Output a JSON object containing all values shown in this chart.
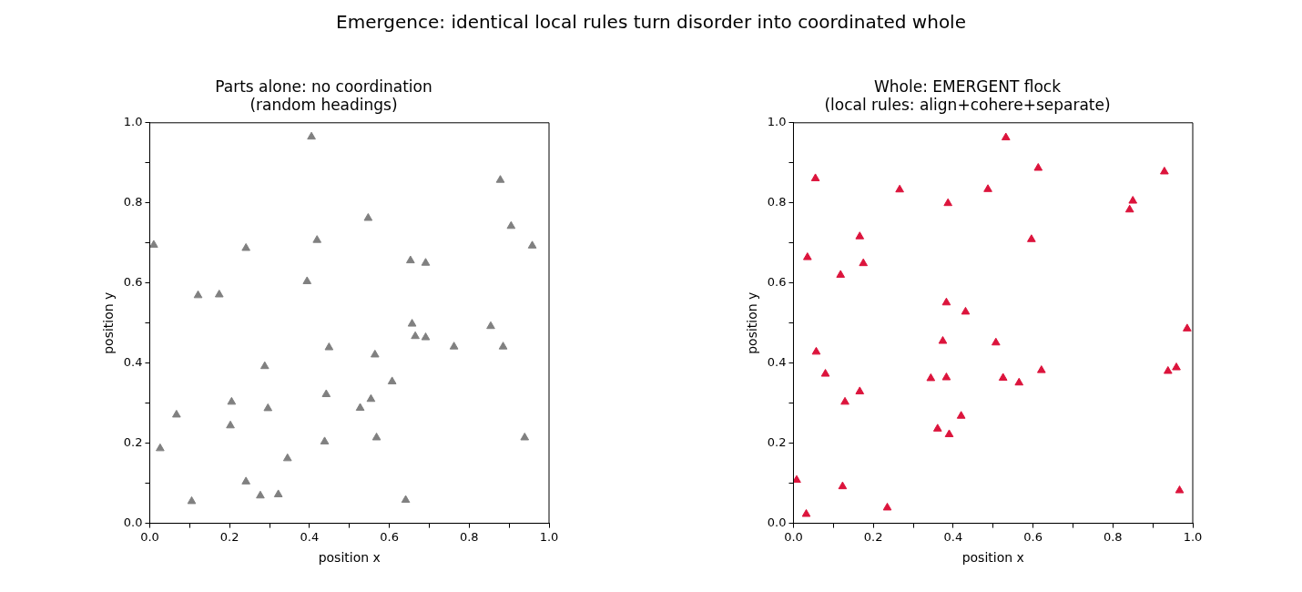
{
  "chart_data": [
    {
      "type": "scatter",
      "title": "Parts alone: no coordination\n(random headings)",
      "annotations": [
        "Emergence: identical local rules turn disorder into coordinated whole"
      ],
      "xlabel": "position x",
      "ylabel": "position y",
      "xlim": [
        0,
        1
      ],
      "ylim": [
        0,
        1
      ],
      "xticks": [
        {
          "value": 0,
          "label": "0.0"
        },
        {
          "value": 0.2,
          "label": "0.2"
        },
        {
          "value": 0.4,
          "label": "0.4"
        },
        {
          "value": 0.6,
          "label": "0.6"
        },
        {
          "value": 0.8,
          "label": "0.8"
        },
        {
          "value": 1,
          "label": "1.0"
        }
      ],
      "yticks": [
        {
          "value": 0,
          "label": "0.0"
        },
        {
          "value": 0.2,
          "label": "0.2"
        },
        {
          "value": 0.4,
          "label": "0.4"
        },
        {
          "value": 0.6,
          "label": "0.6"
        },
        {
          "value": 0.8,
          "label": "0.8"
        },
        {
          "value": 1,
          "label": "1.0"
        }
      ],
      "grid": false,
      "legend": false,
      "marker": "triangle",
      "series": [
        {
          "color": "#808080",
          "x": [
            0.405,
            0.878,
            0.547,
            0.905,
            0.01,
            0.241,
            0.419,
            0.958,
            0.653,
            0.691,
            0.394,
            0.121,
            0.174,
            0.657,
            0.665,
            0.691,
            0.854,
            0.762,
            0.885,
            0.449,
            0.564,
            0.288,
            0.607,
            0.442,
            0.554,
            0.527,
            0.205,
            0.296,
            0.067,
            0.202,
            0.568,
            0.438,
            0.939,
            0.026,
            0.345,
            0.241,
            0.105,
            0.277,
            0.322,
            0.641
          ],
          "values": [
            0.965,
            0.857,
            0.762,
            0.742,
            0.695,
            0.687,
            0.707,
            0.693,
            0.656,
            0.65,
            0.604,
            0.569,
            0.571,
            0.498,
            0.467,
            0.464,
            0.492,
            0.441,
            0.441,
            0.439,
            0.421,
            0.392,
            0.354,
            0.322,
            0.31,
            0.288,
            0.303,
            0.287,
            0.271,
            0.244,
            0.214,
            0.204,
            0.214,
            0.187,
            0.162,
            0.104,
            0.055,
            0.069,
            0.072,
            0.058
          ]
        }
      ]
    },
    {
      "type": "scatter",
      "title": "Whole: EMERGENT flock\n(local rules: align+cohere+separate)",
      "xlabel": "position x",
      "ylabel": "position y",
      "xlim": [
        0,
        1
      ],
      "ylim": [
        0,
        1
      ],
      "xticks": [
        {
          "value": 0,
          "label": "0.0"
        },
        {
          "value": 0.2,
          "label": "0.2"
        },
        {
          "value": 0.4,
          "label": "0.4"
        },
        {
          "value": 0.6,
          "label": "0.6"
        },
        {
          "value": 0.8,
          "label": "0.8"
        },
        {
          "value": 1,
          "label": "1.0"
        }
      ],
      "yticks": [
        {
          "value": 0,
          "label": "0.0"
        },
        {
          "value": 0.2,
          "label": "0.2"
        },
        {
          "value": 0.4,
          "label": "0.4"
        },
        {
          "value": 0.6,
          "label": "0.6"
        },
        {
          "value": 0.8,
          "label": "0.8"
        },
        {
          "value": 1,
          "label": "1.0"
        }
      ],
      "grid": false,
      "legend": false,
      "marker": "triangle",
      "series": [
        {
          "color": "#dc143c",
          "x": [
            0.532,
            0.613,
            0.929,
            0.055,
            0.266,
            0.487,
            0.387,
            0.85,
            0.842,
            0.166,
            0.596,
            0.035,
            0.175,
            0.118,
            0.383,
            0.431,
            0.986,
            0.374,
            0.507,
            0.057,
            0.08,
            0.621,
            0.938,
            0.959,
            0.344,
            0.383,
            0.525,
            0.565,
            0.166,
            0.129,
            0.42,
            0.361,
            0.39,
            0.008,
            0.123,
            0.235,
            0.032,
            0.967
          ],
          "values": [
            0.963,
            0.887,
            0.878,
            0.861,
            0.833,
            0.834,
            0.799,
            0.805,
            0.783,
            0.716,
            0.709,
            0.664,
            0.649,
            0.62,
            0.551,
            0.528,
            0.486,
            0.455,
            0.451,
            0.428,
            0.373,
            0.382,
            0.38,
            0.389,
            0.362,
            0.364,
            0.363,
            0.351,
            0.329,
            0.303,
            0.268,
            0.236,
            0.222,
            0.108,
            0.092,
            0.039,
            0.023,
            0.082
          ]
        }
      ]
    }
  ]
}
